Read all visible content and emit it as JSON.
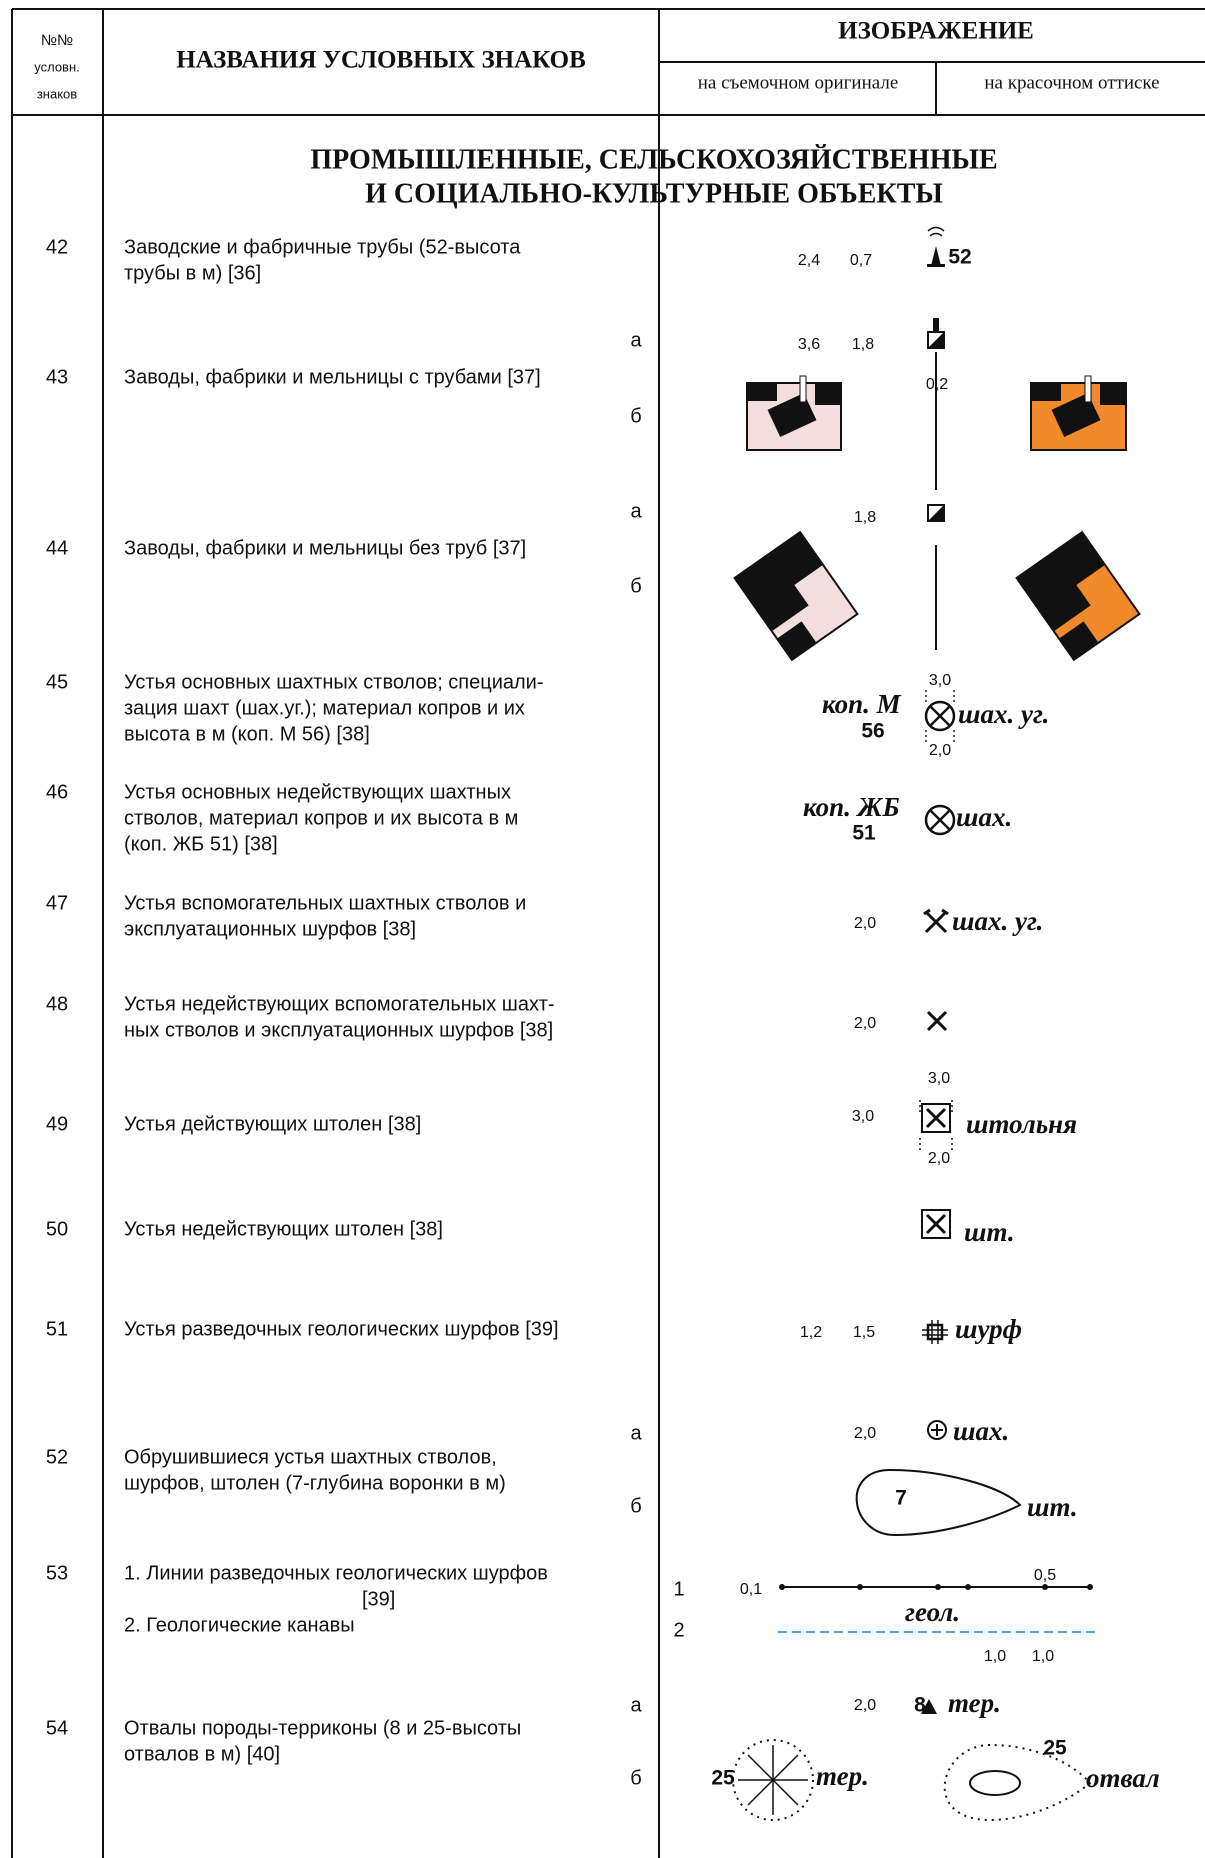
{
  "header": {
    "col_number": [
      "№№",
      "условн.",
      "знаков"
    ],
    "col_name": "НАЗВАНИЯ УСЛОВНЫХ ЗНАКОВ",
    "col_image": "ИЗОБРАЖЕНИЕ",
    "sub_original": "на съемочном оригинале",
    "sub_color": "на красочном оттиске"
  },
  "section": [
    "ПРОМЫШЛЕННЫЕ, СЕЛЬСКОХОЗЯЙСТВЕННЫЕ",
    "И СОЦИАЛЬНО-КУЛЬТУРНЫЕ ОБЪЕКТЫ"
  ],
  "rows": [
    {
      "number": "42",
      "name": [
        "Заводские и фабричные трубы (52-высота",
        "трубы в м) [36]"
      ],
      "labels": [
        "2,4",
        "0,7",
        "52"
      ]
    },
    {
      "number": "43",
      "name": [
        "Заводы, фабрики и мельницы с трубами [37]"
      ],
      "labels": [
        "а",
        "б",
        "3,6",
        "1,8",
        "0,2"
      ]
    },
    {
      "number": "44",
      "name": [
        "Заводы, фабрики и мельницы без труб [37]"
      ],
      "labels": [
        "а",
        "б",
        "1,8"
      ]
    },
    {
      "number": "45",
      "name": [
        "Устья основных шахтных стволов; специали-",
        "зация шахт (шах.уг.); материал копров и их",
        "высота в м (коп. М 56) [38]"
      ],
      "labels": [
        "3,0",
        "коп. М",
        "56",
        "шах. уг.",
        "2,0"
      ]
    },
    {
      "number": "46",
      "name": [
        "Устья основных недействующих шахтных",
        "стволов, материал копров и их высота в м",
        "(коп. ЖБ 51) [38]"
      ],
      "labels": [
        "коп. ЖБ",
        "51",
        "шах."
      ]
    },
    {
      "number": "47",
      "name": [
        "Устья вспомогательных шахтных стволов и",
        "эксплуатационных шурфов [38]"
      ],
      "labels": [
        "2,0",
        "шах. уг."
      ]
    },
    {
      "number": "48",
      "name": [
        "Устья недействующих вспомогательных шахт-",
        "ных стволов и эксплуатационных шурфов [38]"
      ],
      "labels": [
        "2,0"
      ]
    },
    {
      "number": "49",
      "name": [
        "Устья действующих штолен [38]"
      ],
      "labels": [
        "3,0",
        "3,0",
        "штольня",
        "2,0"
      ]
    },
    {
      "number": "50",
      "name": [
        "Устья недействующих штолен [38]"
      ],
      "labels": [
        "шт."
      ]
    },
    {
      "number": "51",
      "name": [
        "Устья разведочных геологических шурфов [39]"
      ],
      "labels": [
        "1,2",
        "1,5",
        "шурф"
      ]
    },
    {
      "number": "52",
      "name": [
        "Обрушившиеся устья шахтных стволов,",
        "шурфов, штолен (7-глубина воронки в м)"
      ],
      "labels": [
        "а",
        "б",
        "2,0",
        "шах.",
        "7",
        "шт."
      ]
    },
    {
      "number": "53",
      "name": [
        "1. Линии разведочных геологических шурфов",
        "[39]",
        "2. Геологические канавы"
      ],
      "labels": [
        "1",
        "2",
        "0,1",
        "0,5",
        "геол.",
        "1,0",
        "1,0"
      ]
    },
    {
      "number": "54",
      "name": [
        "Отвалы породы-терриконы (8 и 25-высоты",
        "отвалов в м) [40]"
      ],
      "labels": [
        "а",
        "б",
        "2,0",
        "8",
        "тер.",
        "25",
        "тер.",
        "25",
        "отвал"
      ]
    }
  ]
}
